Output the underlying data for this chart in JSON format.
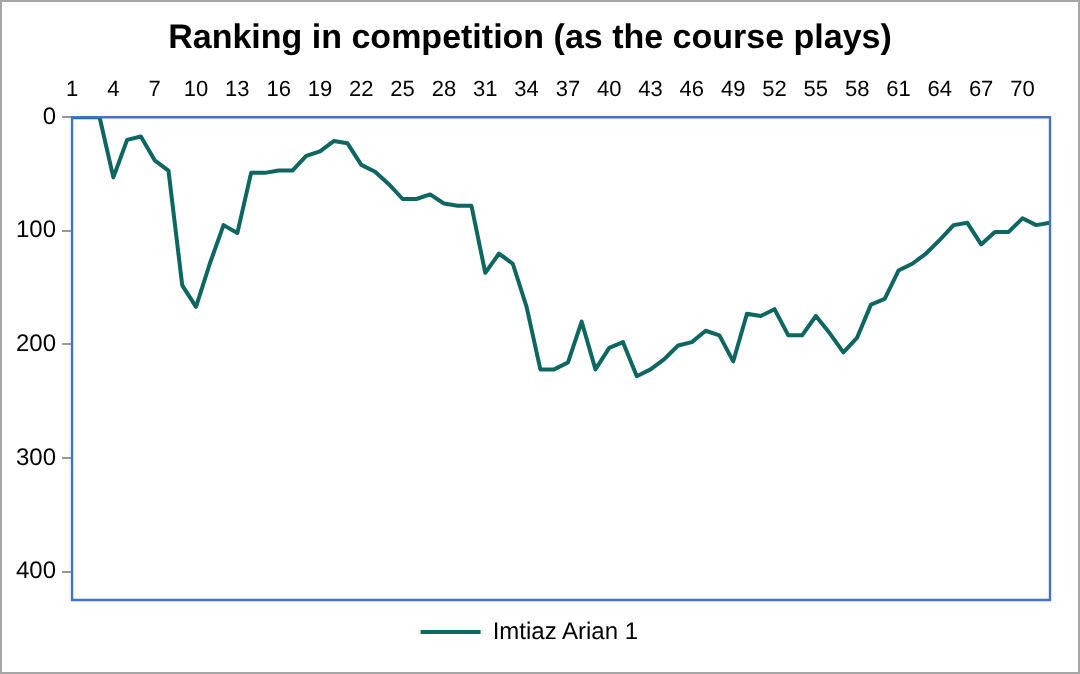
{
  "chart_data": {
    "type": "line",
    "title": "Ranking in competition (as the course plays)",
    "categories": [
      "1",
      null,
      null,
      "4",
      null,
      null,
      "7",
      null,
      null,
      "10",
      null,
      null,
      "13",
      null,
      null,
      "16",
      null,
      null,
      "19",
      null,
      null,
      "22",
      null,
      null,
      "25",
      null,
      null,
      "28",
      null,
      null,
      "31",
      null,
      null,
      "34",
      null,
      null,
      "37",
      null,
      null,
      "40",
      null,
      null,
      "43",
      null,
      null,
      "46",
      null,
      null,
      "49",
      null,
      null,
      "52",
      null,
      null,
      "55",
      null,
      null,
      "58",
      null,
      null,
      "61",
      null,
      null,
      "64",
      null,
      null,
      "67",
      null,
      null,
      "70",
      null,
      null
    ],
    "series": [
      {
        "name": "Imtiaz Arian 1",
        "color": "#0e6660",
        "values": [
          0,
          0,
          0,
          53,
          20,
          17,
          38,
          47,
          148,
          167,
          129,
          95,
          102,
          49,
          49,
          47,
          47,
          34,
          30,
          21,
          23,
          42,
          48,
          59,
          72,
          72,
          68,
          76,
          78,
          78,
          137,
          120,
          129,
          167,
          222,
          222,
          216,
          180,
          222,
          203,
          198,
          228,
          222,
          213,
          201,
          198,
          188,
          192,
          215,
          173,
          175,
          169,
          192,
          192,
          175,
          190,
          207,
          194,
          165,
          160,
          135,
          129,
          120,
          108,
          95,
          93,
          112,
          101,
          101,
          89,
          95,
          93
        ]
      }
    ],
    "ylim": [
      425,
      0
    ],
    "yticks": [
      0,
      100,
      200,
      300,
      400
    ],
    "grid": false,
    "legend": "bottom",
    "marker": "none",
    "line_style": "solid"
  }
}
